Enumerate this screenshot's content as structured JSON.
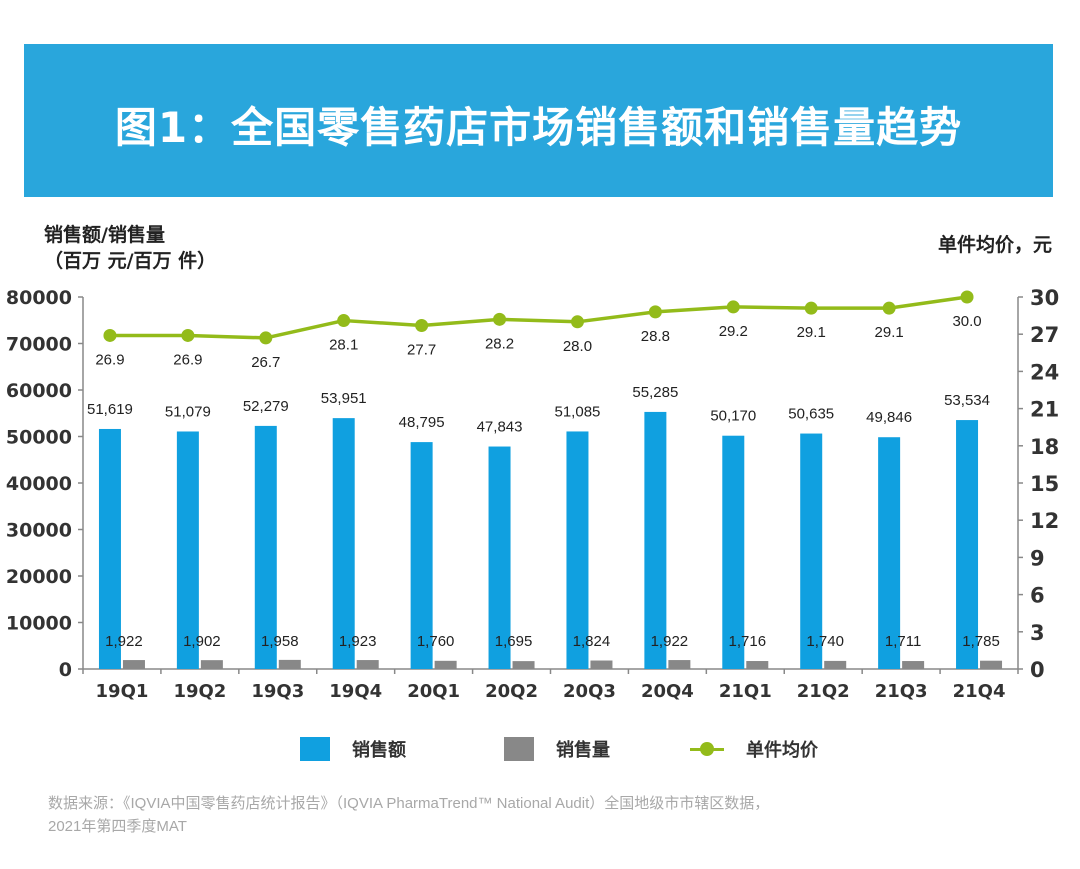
{
  "banner": {
    "title": "图1：全国零售药店市场销售额和销售量趋势"
  },
  "axis_titles": {
    "left_line1": "销售额/销售量",
    "left_line2": "（百万 元/百万 件）",
    "right": "单件均价，元"
  },
  "colors": {
    "sales": "#10a0e0",
    "volume": "#888888",
    "price": "#93bb1a",
    "banner": "#29a6dc"
  },
  "legend": [
    {
      "label": "销售额",
      "type": "bar"
    },
    {
      "label": "销售量",
      "type": "bar"
    },
    {
      "label": "单件均价",
      "type": "line"
    }
  ],
  "source": {
    "line1": "数据来源：《IQVIA中国零售药店统计报告》（IQVIA PharmaTrend™ National Audit）全国地级市市辖区数据，",
    "line2": "2021年第四季度MAT"
  },
  "chart_data": {
    "type": "bar",
    "title": "图1：全国零售药店市场销售额和销售量趋势",
    "xlabel": "",
    "ylabel": "销售额/销售量（百万 元/百万 件）",
    "y2label": "单件均价，元",
    "categories": [
      "19Q1",
      "19Q2",
      "19Q3",
      "19Q4",
      "20Q1",
      "20Q2",
      "20Q3",
      "20Q4",
      "21Q1",
      "21Q2",
      "21Q3",
      "21Q4"
    ],
    "ylim": [
      0,
      80000
    ],
    "yticks": [
      0,
      10000,
      20000,
      30000,
      40000,
      50000,
      60000,
      70000,
      80000
    ],
    "y2lim": [
      0,
      30
    ],
    "y2ticks": [
      0,
      3,
      6,
      9,
      12,
      15,
      18,
      21,
      24,
      27,
      30
    ],
    "grid": false,
    "legend_position": "bottom",
    "series": [
      {
        "name": "销售额",
        "type": "bar",
        "axis": "left",
        "values": [
          51619,
          51079,
          52279,
          53951,
          48795,
          47843,
          51085,
          55285,
          50170,
          50635,
          49846,
          53534
        ],
        "labels": [
          "51,619",
          "51,079",
          "52,279",
          "53,951",
          "48,795",
          "47,843",
          "51,085",
          "55,285",
          "50,170",
          "50,635",
          "49,846",
          "53,534"
        ]
      },
      {
        "name": "销售量",
        "type": "bar",
        "axis": "left",
        "values": [
          1922,
          1902,
          1958,
          1923,
          1760,
          1695,
          1824,
          1922,
          1716,
          1740,
          1711,
          1785
        ],
        "labels": [
          "1,922",
          "1,902",
          "1,958",
          "1,923",
          "1,760",
          "1,695",
          "1,824",
          "1,922",
          "1,716",
          "1,740",
          "1,711",
          "1,785"
        ]
      },
      {
        "name": "单件均价",
        "type": "line",
        "axis": "right",
        "values": [
          26.9,
          26.9,
          26.7,
          28.1,
          27.7,
          28.2,
          28.0,
          28.8,
          29.2,
          29.1,
          29.1,
          30.0
        ],
        "labels": [
          "26.9",
          "26.9",
          "26.7",
          "28.1",
          "27.7",
          "28.2",
          "28.0",
          "28.8",
          "29.2",
          "29.1",
          "29.1",
          "30.0"
        ]
      }
    ]
  }
}
